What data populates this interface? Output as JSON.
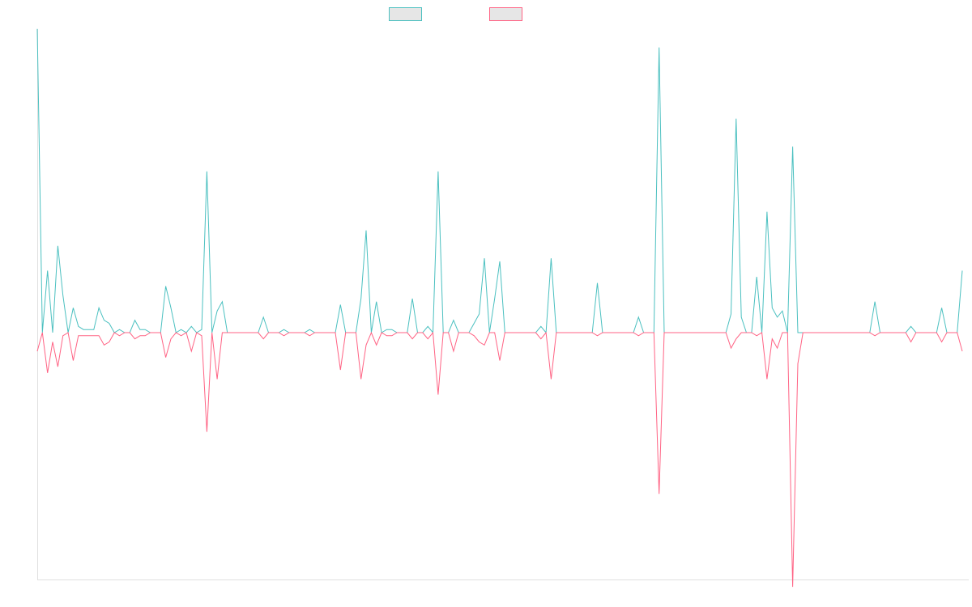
{
  "chart_data": {
    "type": "line",
    "title": "",
    "xlabel": "",
    "ylabel": "",
    "x_count": 180,
    "ylim": [
      -1.0,
      1.0
    ],
    "grid": false,
    "legend_position": "top-center",
    "colors": {
      "series_1": "#4BC0C0",
      "series_2": "#FF6384",
      "swatch_fill": "#E6E6E6",
      "axis": "#E0E0E0"
    },
    "series": [
      {
        "name": "",
        "peaks": [
          [
            0,
            0.98
          ],
          [
            2,
            0.2
          ],
          [
            4,
            0.28
          ],
          [
            5,
            0.12
          ],
          [
            7,
            0.08
          ],
          [
            8,
            0.02
          ],
          [
            9,
            0.01
          ],
          [
            10,
            0.01
          ],
          [
            11,
            0.01
          ],
          [
            12,
            0.08
          ],
          [
            13,
            0.04
          ],
          [
            14,
            0.03
          ],
          [
            16,
            0.01
          ],
          [
            19,
            0.04
          ],
          [
            20,
            0.01
          ],
          [
            21,
            0.01
          ],
          [
            25,
            0.15
          ],
          [
            26,
            0.08
          ],
          [
            28,
            0.01
          ],
          [
            30,
            0.02
          ],
          [
            32,
            0.01
          ],
          [
            33,
            0.52
          ],
          [
            35,
            0.07
          ],
          [
            36,
            0.1
          ],
          [
            44,
            0.05
          ],
          [
            48,
            0.01
          ],
          [
            53,
            0.01
          ],
          [
            59,
            0.09
          ],
          [
            63,
            0.11
          ],
          [
            64,
            0.33
          ],
          [
            66,
            0.1
          ],
          [
            68,
            0.01
          ],
          [
            69,
            0.01
          ],
          [
            73,
            0.11
          ],
          [
            76,
            0.02
          ],
          [
            78,
            0.52
          ],
          [
            81,
            0.04
          ],
          [
            85,
            0.03
          ],
          [
            86,
            0.06
          ],
          [
            87,
            0.24
          ],
          [
            89,
            0.11
          ],
          [
            90,
            0.23
          ],
          [
            98,
            0.02
          ],
          [
            100,
            0.24
          ],
          [
            109,
            0.16
          ],
          [
            117,
            0.05
          ],
          [
            121,
            0.92
          ],
          [
            135,
            0.06
          ],
          [
            136,
            0.69
          ],
          [
            137,
            0.05
          ],
          [
            140,
            0.18
          ],
          [
            142,
            0.39
          ],
          [
            143,
            0.08
          ],
          [
            144,
            0.05
          ],
          [
            145,
            0.07
          ],
          [
            147,
            0.6
          ],
          [
            163,
            0.1
          ],
          [
            170,
            0.02
          ],
          [
            176,
            0.08
          ],
          [
            180,
            0.2
          ]
        ]
      },
      {
        "name": "",
        "peaks": [
          [
            0,
            -0.06
          ],
          [
            2,
            -0.13
          ],
          [
            3,
            -0.03
          ],
          [
            4,
            -0.11
          ],
          [
            5,
            -0.01
          ],
          [
            7,
            -0.09
          ],
          [
            8,
            -0.01
          ],
          [
            9,
            -0.01
          ],
          [
            10,
            -0.01
          ],
          [
            11,
            -0.01
          ],
          [
            12,
            -0.01
          ],
          [
            13,
            -0.04
          ],
          [
            14,
            -0.03
          ],
          [
            16,
            -0.01
          ],
          [
            19,
            -0.02
          ],
          [
            20,
            -0.01
          ],
          [
            21,
            -0.01
          ],
          [
            25,
            -0.08
          ],
          [
            26,
            -0.02
          ],
          [
            28,
            -0.01
          ],
          [
            30,
            -0.06
          ],
          [
            32,
            -0.01
          ],
          [
            33,
            -0.32
          ],
          [
            35,
            -0.15
          ],
          [
            44,
            -0.02
          ],
          [
            48,
            -0.01
          ],
          [
            53,
            -0.01
          ],
          [
            59,
            -0.12
          ],
          [
            63,
            -0.15
          ],
          [
            64,
            -0.04
          ],
          [
            66,
            -0.04
          ],
          [
            68,
            -0.01
          ],
          [
            69,
            -0.01
          ],
          [
            73,
            -0.02
          ],
          [
            76,
            -0.02
          ],
          [
            78,
            -0.2
          ],
          [
            81,
            -0.06
          ],
          [
            85,
            -0.01
          ],
          [
            86,
            -0.03
          ],
          [
            87,
            -0.04
          ],
          [
            90,
            -0.09
          ],
          [
            98,
            -0.02
          ],
          [
            100,
            -0.15
          ],
          [
            109,
            -0.01
          ],
          [
            117,
            -0.01
          ],
          [
            121,
            -0.52
          ],
          [
            135,
            -0.05
          ],
          [
            136,
            -0.02
          ],
          [
            140,
            -0.01
          ],
          [
            142,
            -0.15
          ],
          [
            143,
            -0.02
          ],
          [
            144,
            -0.05
          ],
          [
            147,
            -0.82
          ],
          [
            148,
            -0.1
          ],
          [
            163,
            -0.01
          ],
          [
            170,
            -0.03
          ],
          [
            176,
            -0.03
          ],
          [
            180,
            -0.06
          ]
        ]
      }
    ]
  }
}
